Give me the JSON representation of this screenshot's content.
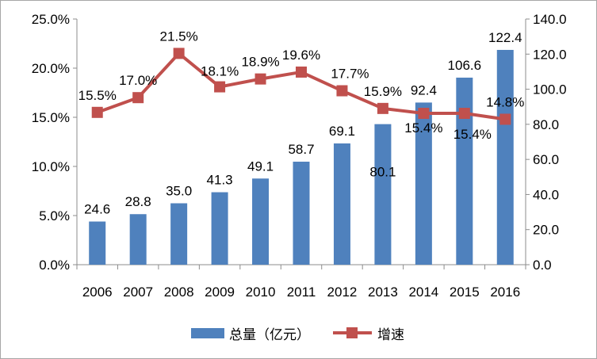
{
  "chart_data": {
    "type": "bar+line",
    "categories": [
      "2006",
      "2007",
      "2008",
      "2009",
      "2010",
      "2011",
      "2012",
      "2013",
      "2014",
      "2015",
      "2016"
    ],
    "series": [
      {
        "name": "总量（亿元）",
        "type": "bar",
        "axis": "right",
        "color": "#4f81bd",
        "values": [
          24.6,
          28.8,
          35.0,
          41.3,
          49.1,
          58.7,
          69.1,
          80.1,
          92.4,
          106.6,
          122.4
        ],
        "labels": [
          "24.6",
          "28.8",
          "35.0",
          "41.3",
          "49.1",
          "58.7",
          "69.1",
          "80.1",
          "92.4",
          "106.6",
          "122.4"
        ]
      },
      {
        "name": "增速",
        "type": "line",
        "axis": "left",
        "color": "#c0504d",
        "values": [
          15.5,
          17.0,
          21.5,
          18.1,
          18.9,
          19.6,
          17.7,
          15.9,
          15.4,
          15.4,
          14.8
        ],
        "labels": [
          "15.5%",
          "17.0%",
          "21.5%",
          "18.1%",
          "18.9%",
          "19.6%",
          "17.7%",
          "15.9%",
          "15.4%",
          "15.4%",
          "14.8%"
        ]
      }
    ],
    "left_axis": {
      "min": 0,
      "max": 25,
      "step": 5,
      "ticks": [
        "0.0%",
        "5.0%",
        "10.0%",
        "15.0%",
        "20.0%",
        "25.0%"
      ]
    },
    "right_axis": {
      "min": 0,
      "max": 140,
      "step": 20,
      "ticks": [
        "0.0",
        "20.0",
        "40.0",
        "60.0",
        "80.0",
        "100.0",
        "120.0",
        "140.0"
      ]
    },
    "gridlines": false,
    "legend_position": "bottom"
  }
}
